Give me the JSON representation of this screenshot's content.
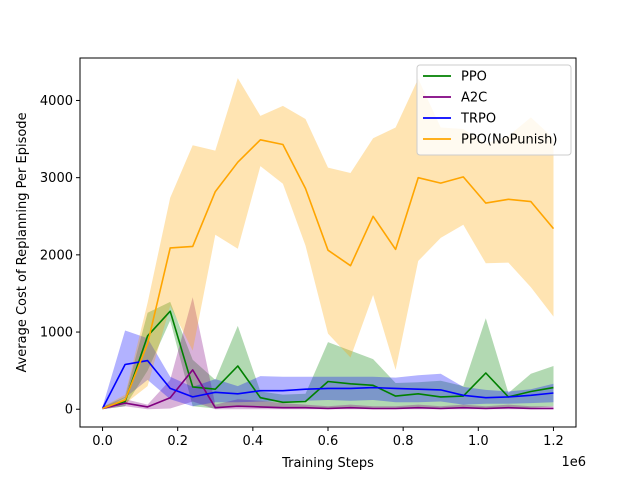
{
  "chart_data": {
    "type": "line",
    "xlabel": "Training Steps",
    "ylabel": "Average Cost of Replanning Per Episode",
    "x_scale_label": "1e6",
    "xlim": [
      -0.06,
      1.26
    ],
    "ylim": [
      -230,
      4550
    ],
    "x_ticks": [
      0.0,
      0.2,
      0.4,
      0.6,
      0.8,
      1.0,
      1.2
    ],
    "x_tick_labels": [
      "0.0",
      "0.2",
      "0.4",
      "0.6",
      "0.8",
      "1.0",
      "1.2"
    ],
    "y_ticks": [
      0,
      1000,
      2000,
      3000,
      4000
    ],
    "y_tick_labels": [
      "0",
      "1000",
      "2000",
      "3000",
      "4000"
    ],
    "legend_position": "top-right",
    "x": [
      0.0,
      0.06,
      0.12,
      0.18,
      0.24,
      0.3,
      0.36,
      0.42,
      0.48,
      0.54,
      0.6,
      0.66,
      0.72,
      0.78,
      0.84,
      0.9,
      0.96,
      1.02,
      1.08,
      1.14,
      1.2
    ],
    "series": [
      {
        "name": "PPO",
        "color": "#008000",
        "values": [
          10,
          100,
          950,
          1270,
          290,
          260,
          560,
          150,
          90,
          100,
          360,
          330,
          310,
          170,
          200,
          160,
          170,
          470,
          160,
          230,
          280
        ],
        "lower": [
          0,
          40,
          500,
          1150,
          40,
          10,
          50,
          20,
          10,
          20,
          10,
          20,
          20,
          20,
          20,
          20,
          20,
          10,
          20,
          20,
          40
        ],
        "upper": [
          30,
          160,
          1250,
          1390,
          640,
          380,
          1080,
          230,
          190,
          200,
          870,
          760,
          650,
          340,
          350,
          370,
          300,
          1180,
          210,
          460,
          560
        ]
      },
      {
        "name": "A2C",
        "color": "#800080",
        "values": [
          10,
          80,
          30,
          150,
          510,
          20,
          40,
          30,
          20,
          20,
          10,
          20,
          10,
          10,
          20,
          10,
          20,
          10,
          20,
          10,
          10
        ],
        "lower": [
          0,
          40,
          0,
          10,
          100,
          0,
          0,
          0,
          0,
          0,
          0,
          0,
          0,
          0,
          0,
          0,
          0,
          0,
          0,
          0,
          0
        ],
        "upper": [
          30,
          130,
          60,
          380,
          1450,
          60,
          130,
          110,
          80,
          60,
          40,
          60,
          40,
          40,
          60,
          40,
          60,
          40,
          60,
          40,
          40
        ]
      },
      {
        "name": "TRPO",
        "color": "#0000FF",
        "values": [
          10,
          580,
          630,
          270,
          160,
          220,
          200,
          240,
          240,
          260,
          270,
          270,
          280,
          270,
          260,
          250,
          180,
          150,
          160,
          180,
          210
        ],
        "lower": [
          0,
          150,
          380,
          130,
          40,
          90,
          90,
          100,
          100,
          110,
          120,
          110,
          120,
          90,
          90,
          100,
          60,
          70,
          70,
          80,
          90
        ],
        "upper": [
          30,
          1020,
          920,
          420,
          290,
          390,
          300,
          430,
          420,
          420,
          420,
          420,
          420,
          410,
          440,
          460,
          290,
          250,
          230,
          260,
          330
        ]
      },
      {
        "name": "PPO(NoPunish)",
        "color": "#FFA500",
        "values": [
          10,
          120,
          850,
          2090,
          2110,
          2820,
          3200,
          3490,
          3430,
          2860,
          2060,
          1860,
          2500,
          2070,
          3000,
          2930,
          3010,
          2670,
          2720,
          2690,
          2340
        ],
        "lower": [
          0,
          70,
          300,
          1340,
          760,
          2260,
          2080,
          3150,
          2920,
          2120,
          980,
          670,
          1480,
          510,
          1920,
          2220,
          2390,
          1890,
          1900,
          1580,
          1200
        ],
        "upper": [
          30,
          190,
          1380,
          2740,
          3420,
          3350,
          4290,
          3800,
          3930,
          3760,
          3130,
          3060,
          3510,
          3650,
          4280,
          3650,
          3630,
          3440,
          3540,
          3780,
          3510
        ]
      }
    ]
  }
}
